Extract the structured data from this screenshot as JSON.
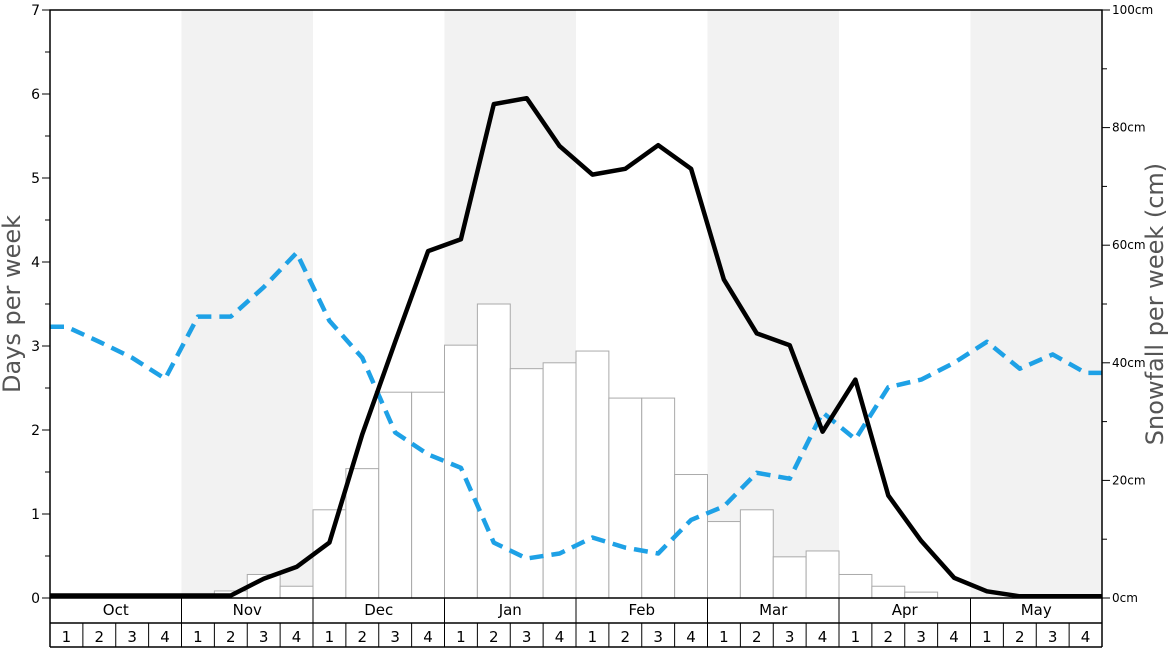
{
  "chart_data": {
    "type": "bar",
    "y_left_label": "Days per week",
    "y_right_label": "Snowfall per week (cm)",
    "y_left_ticks": [
      "0",
      "1",
      "2",
      "3",
      "4",
      "5",
      "6",
      "7"
    ],
    "y_right_ticks": [
      "0cm",
      "20cm",
      "40cm",
      "60cm",
      "80cm",
      "100cm"
    ],
    "ylim_left": [
      0,
      7
    ],
    "ylim_right": [
      0,
      100
    ],
    "months": [
      "Oct",
      "Nov",
      "Dec",
      "Jan",
      "Feb",
      "Mar",
      "Apr",
      "May"
    ],
    "week_labels": [
      "1",
      "2",
      "3",
      "4"
    ],
    "snowfall_cm": [
      0,
      0,
      0,
      0,
      0,
      1.2,
      4,
      2,
      15,
      22,
      35,
      35,
      43,
      50,
      39,
      40,
      42,
      34,
      34,
      21,
      13,
      15,
      7,
      8,
      4,
      2,
      1,
      0,
      0,
      0,
      0,
      0
    ],
    "snow_days_per_week": [
      0.03,
      0.03,
      0.03,
      0.03,
      0.03,
      0.03,
      0.23,
      0.37,
      0.66,
      1.95,
      3.05,
      4.13,
      4.27,
      5.88,
      5.95,
      5.38,
      5.04,
      5.11,
      5.39,
      5.11,
      3.79,
      3.15,
      3.01,
      1.98,
      2.6,
      1.22,
      0.68,
      0.24,
      0.08,
      0.02,
      0.02,
      0.02
    ],
    "other_days_per_week": [
      3.23,
      3.05,
      2.86,
      2.61,
      3.35,
      3.35,
      3.7,
      4.11,
      3.3,
      2.86,
      1.97,
      1.71,
      1.55,
      0.66,
      0.47,
      0.53,
      0.72,
      0.6,
      0.53,
      0.93,
      1.09,
      1.49,
      1.42,
      2.21,
      1.89,
      2.51,
      2.6,
      2.8,
      3.05,
      2.73,
      2.9,
      2.68
    ],
    "series_colors": {
      "snowfall_bars": "#ffffff",
      "bar_stroke": "#aaaaaa",
      "snow_days_line": "#000000",
      "other_days_line": "#1ea1e6",
      "shading": "#f2f2f2"
    }
  }
}
